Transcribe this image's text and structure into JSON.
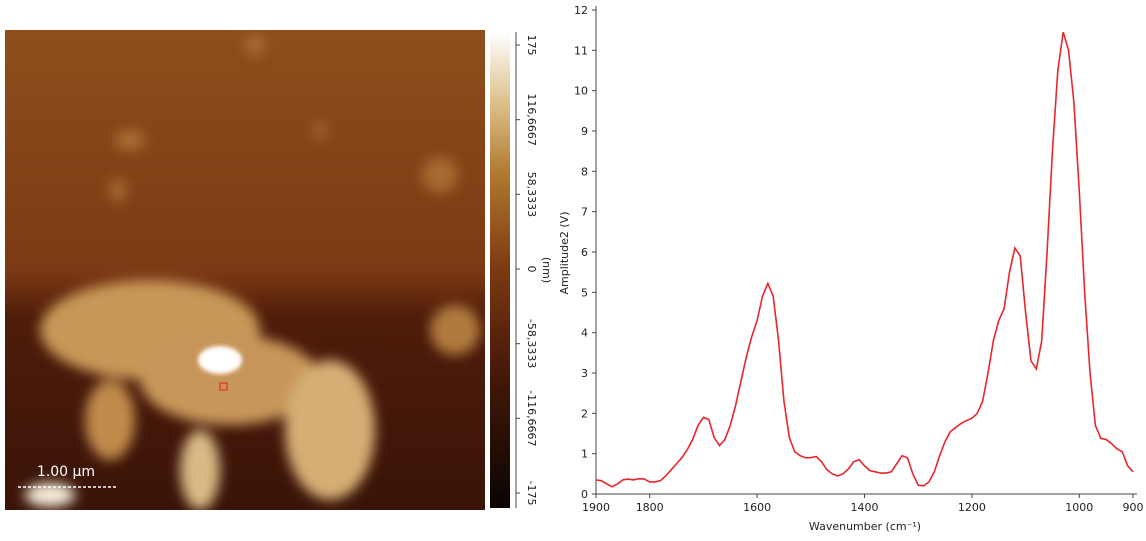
{
  "chart_data": [
    {
      "type": "image",
      "scale_bar": "1.00 µm",
      "colorbar": {
        "label": "(nm)",
        "lim": [
          -175,
          175
        ],
        "ticks": [
          175,
          {
            "value": 116.6667,
            "label": "116,6667"
          },
          {
            "value": 58.3333,
            "label": "58,3333"
          },
          0,
          {
            "value": -58.3333,
            "label": "-58,3333"
          },
          {
            "value": -116.6667,
            "label": "-116,6667"
          },
          -175
        ]
      }
    },
    {
      "type": "line",
      "xlabel": "Wavenumber (cm⁻¹)",
      "ylabel": "Amplitude2 (V)",
      "xlim": [
        1900,
        900
      ],
      "ylim": [
        0,
        12
      ],
      "xticks": [
        1900,
        1800,
        1600,
        1400,
        1200,
        1000,
        900
      ],
      "yticks": [
        0,
        1,
        2,
        3,
        4,
        5,
        6,
        7,
        8,
        9,
        10,
        11,
        12
      ],
      "series": [
        {
          "color": "#e8262b",
          "x": [
            1900,
            1890,
            1880,
            1870,
            1860,
            1850,
            1840,
            1830,
            1820,
            1810,
            1800,
            1790,
            1780,
            1770,
            1760,
            1750,
            1740,
            1730,
            1720,
            1710,
            1700,
            1690,
            1680,
            1670,
            1660,
            1650,
            1640,
            1630,
            1620,
            1610,
            1600,
            1590,
            1580,
            1570,
            1560,
            1550,
            1540,
            1530,
            1520,
            1510,
            1500,
            1490,
            1480,
            1470,
            1460,
            1450,
            1440,
            1430,
            1420,
            1410,
            1400,
            1390,
            1380,
            1370,
            1360,
            1350,
            1340,
            1330,
            1320,
            1310,
            1300,
            1290,
            1280,
            1270,
            1260,
            1250,
            1240,
            1230,
            1220,
            1210,
            1200,
            1190,
            1180,
            1170,
            1160,
            1150,
            1140,
            1130,
            1120,
            1110,
            1100,
            1090,
            1080,
            1070,
            1060,
            1050,
            1040,
            1030,
            1020,
            1010,
            1000,
            990,
            980,
            970,
            960,
            950,
            940,
            930,
            920,
            910,
            900
          ],
          "values": [
            0.35,
            0.33,
            0.25,
            0.18,
            0.25,
            0.35,
            0.37,
            0.35,
            0.38,
            0.37,
            0.3,
            0.3,
            0.33,
            0.45,
            0.6,
            0.75,
            0.9,
            1.1,
            1.35,
            1.7,
            1.9,
            1.85,
            1.4,
            1.2,
            1.35,
            1.7,
            2.2,
            2.8,
            3.4,
            3.9,
            4.3,
            4.9,
            5.22,
            4.9,
            3.8,
            2.3,
            1.4,
            1.05,
            0.95,
            0.9,
            0.9,
            0.93,
            0.8,
            0.6,
            0.5,
            0.45,
            0.5,
            0.62,
            0.8,
            0.85,
            0.7,
            0.58,
            0.55,
            0.52,
            0.52,
            0.55,
            0.75,
            0.95,
            0.9,
            0.5,
            0.22,
            0.2,
            0.3,
            0.55,
            0.95,
            1.3,
            1.55,
            1.65,
            1.75,
            1.82,
            1.88,
            2.0,
            2.3,
            3.0,
            3.8,
            4.3,
            4.6,
            5.5,
            6.1,
            5.9,
            4.5,
            3.3,
            3.1,
            3.8,
            6.0,
            8.5,
            10.5,
            11.45,
            11.0,
            9.7,
            7.5,
            5.0,
            3.0,
            1.7,
            1.38,
            1.35,
            1.25,
            1.12,
            1.05,
            0.7,
            0.55
          ]
        }
      ]
    }
  ]
}
